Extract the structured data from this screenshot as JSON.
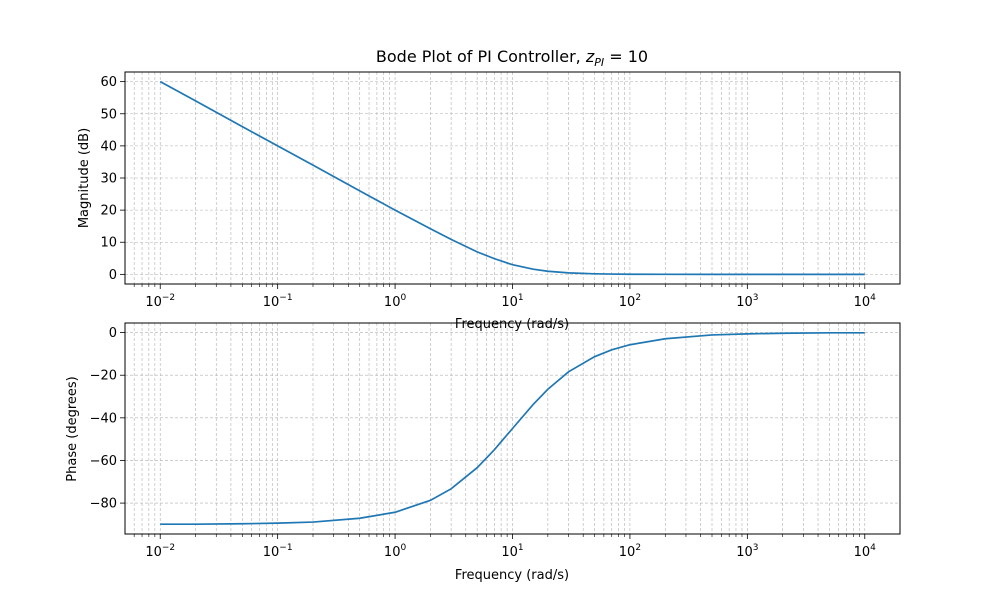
{
  "chart_data": [
    {
      "type": "line",
      "title": "Bode Plot of PI Controller, ",
      "title_math": "z",
      "title_math_sub": "PI",
      "title_math_tail": " = 10",
      "xlabel": "Frequency (rad/s)",
      "ylabel": "Magnitude (dB)",
      "xscale": "log",
      "xlim_exp": [
        -2.3,
        4.3
      ],
      "ylim": [
        -3,
        63
      ],
      "xticks": [
        -2,
        -1,
        0,
        1,
        2,
        3,
        4
      ],
      "yticks": [
        0,
        10,
        20,
        30,
        40,
        50,
        60
      ],
      "ytick_labels": [
        "0",
        "10",
        "20",
        "30",
        "40",
        "50",
        "60"
      ],
      "grid": true,
      "color": "#1f77b4",
      "series": [
        {
          "x": [
            0.01,
            0.02,
            0.05,
            0.1,
            0.2,
            0.5,
            1,
            2,
            3,
            5,
            7,
            10,
            15,
            20,
            30,
            50,
            70,
            100,
            200,
            500,
            1000,
            2000,
            5000,
            10000
          ],
          "values": [
            60.0,
            54.0,
            46.0,
            40.0,
            34.0,
            26.0,
            20.0,
            14.2,
            10.9,
            7.0,
            4.9,
            3.0,
            1.6,
            0.97,
            0.46,
            0.17,
            0.09,
            0.04,
            0.01,
            0.0,
            0.0,
            0.0,
            0.0,
            0.0
          ]
        }
      ]
    },
    {
      "type": "line",
      "xlabel": "Frequency (rad/s)",
      "ylabel": "Phase (degrees)",
      "xscale": "log",
      "xlim_exp": [
        -2.3,
        4.3
      ],
      "ylim": [
        -94.5,
        4.5
      ],
      "xticks": [
        -2,
        -1,
        0,
        1,
        2,
        3,
        4
      ],
      "yticks": [
        -80,
        -60,
        -40,
        -20,
        0
      ],
      "ytick_labels": [
        "−80",
        "−60",
        "−40",
        "−20",
        "0"
      ],
      "grid": true,
      "color": "#1f77b4",
      "series": [
        {
          "x": [
            0.01,
            0.02,
            0.05,
            0.1,
            0.2,
            0.5,
            1,
            2,
            3,
            5,
            7,
            10,
            15,
            20,
            30,
            50,
            70,
            100,
            200,
            500,
            1000,
            2000,
            5000,
            10000
          ],
          "values": [
            -89.9,
            -89.9,
            -89.7,
            -89.4,
            -88.9,
            -87.1,
            -84.3,
            -78.7,
            -73.3,
            -63.4,
            -55.0,
            -45.0,
            -33.7,
            -26.6,
            -18.4,
            -11.3,
            -8.1,
            -5.7,
            -2.9,
            -1.1,
            -0.6,
            -0.3,
            -0.1,
            -0.1
          ]
        }
      ]
    }
  ]
}
